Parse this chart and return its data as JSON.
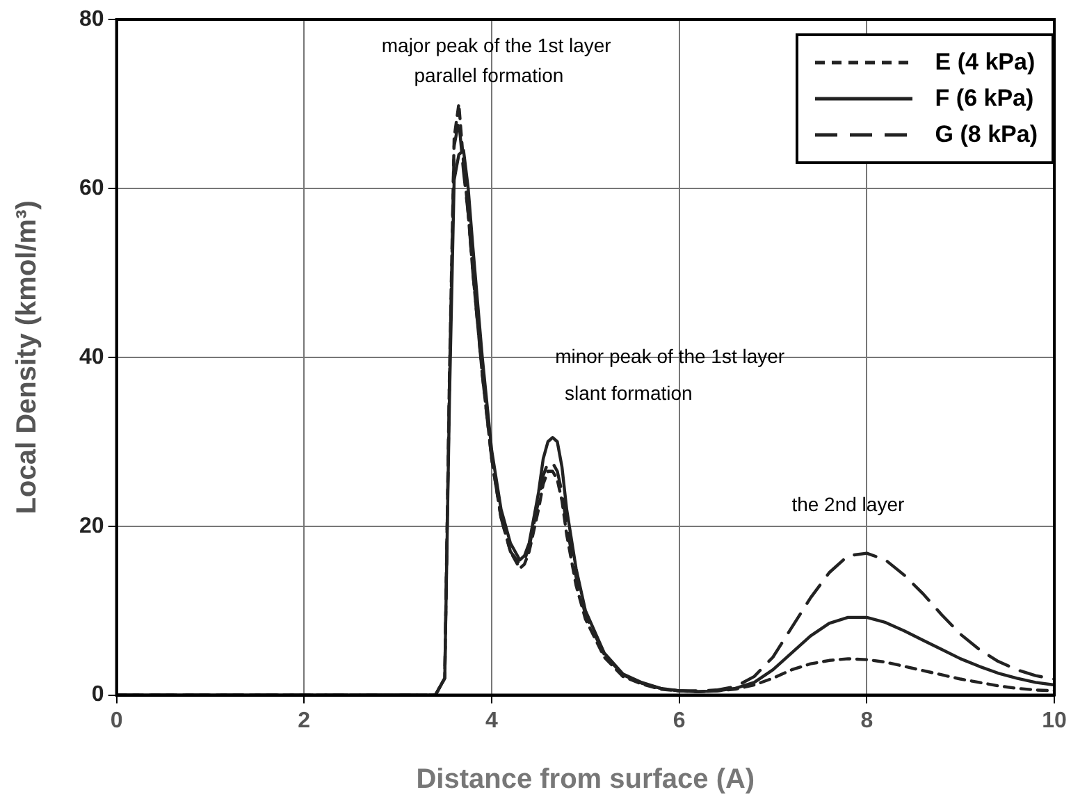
{
  "chart_data": {
    "type": "line",
    "xlabel": "Distance from surface (A)",
    "ylabel": "Local Density (kmol/m³)",
    "x": [
      0,
      1,
      2,
      3,
      3.4,
      3.5,
      3.55,
      3.6,
      3.65,
      3.7,
      3.75,
      3.8,
      3.9,
      4.0,
      4.1,
      4.2,
      4.3,
      4.35,
      4.4,
      4.5,
      4.55,
      4.6,
      4.65,
      4.7,
      4.75,
      4.8,
      4.9,
      5.0,
      5.2,
      5.4,
      5.6,
      5.8,
      6.0,
      6.2,
      6.4,
      6.6,
      6.8,
      7.0,
      7.2,
      7.4,
      7.6,
      7.8,
      8.0,
      8.2,
      8.4,
      8.6,
      8.8,
      9.0,
      9.2,
      9.4,
      9.6,
      9.8,
      10
    ],
    "series": [
      {
        "name": "E (4 kPa)",
        "color": "#222222",
        "line_style": "dashed",
        "values": [
          0,
          0,
          0,
          0,
          0,
          2,
          38,
          66,
          70,
          63,
          57,
          50,
          38,
          28,
          21,
          17,
          15,
          15.5,
          17,
          22,
          25,
          26.5,
          26.5,
          25.5,
          23,
          19,
          13,
          9,
          4.5,
          2.2,
          1.3,
          0.7,
          0.5,
          0.4,
          0.5,
          0.7,
          1.2,
          2,
          3,
          3.7,
          4.1,
          4.3,
          4.2,
          3.9,
          3.4,
          2.9,
          2.4,
          1.9,
          1.5,
          1.1,
          0.8,
          0.6,
          0.5
        ]
      },
      {
        "name": "F (6 kPa)",
        "color": "#222222",
        "line_style": "solid",
        "values": [
          0,
          0,
          0,
          0,
          0,
          2,
          35,
          61,
          64,
          64.5,
          60,
          53,
          40,
          29,
          22,
          18,
          16,
          16.5,
          18,
          24,
          28,
          30,
          30.5,
          30,
          27,
          22,
          15,
          10,
          5,
          2.5,
          1.5,
          0.8,
          0.5,
          0.4,
          0.5,
          0.8,
          1.5,
          3,
          5,
          7,
          8.5,
          9.2,
          9.2,
          8.6,
          7.6,
          6.5,
          5.4,
          4.3,
          3.4,
          2.6,
          2,
          1.5,
          1.2
        ]
      },
      {
        "name": "G (8 kPa)",
        "color": "#222222",
        "line_style": "longdash",
        "values": [
          0,
          0,
          0,
          0,
          0,
          2,
          37,
          65,
          68,
          62,
          57,
          50,
          38,
          28,
          21,
          17,
          15.5,
          16,
          17.5,
          23,
          26,
          27.5,
          27.5,
          26.5,
          24,
          20,
          14,
          9.5,
          4.8,
          2.4,
          1.4,
          0.8,
          0.5,
          0.5,
          0.6,
          1,
          2.2,
          4.5,
          8,
          11.5,
          14.5,
          16.5,
          16.8,
          16,
          14.2,
          12,
          9.5,
          7.2,
          5.4,
          4,
          3,
          2.3,
          1.9
        ]
      }
    ],
    "xlim": [
      0,
      10
    ],
    "xticks": [
      0,
      2,
      4,
      6,
      8,
      10
    ],
    "ylim": [
      0,
      80
    ],
    "yticks": [
      0,
      20,
      40,
      60,
      80
    ],
    "grid": true,
    "legend": "top right",
    "marker": "none",
    "annotations": [
      "major peak of the 1st layer",
      "parallel formation",
      "minor peak of the 1st layer",
      "slant formation",
      "the 2nd layer"
    ]
  }
}
